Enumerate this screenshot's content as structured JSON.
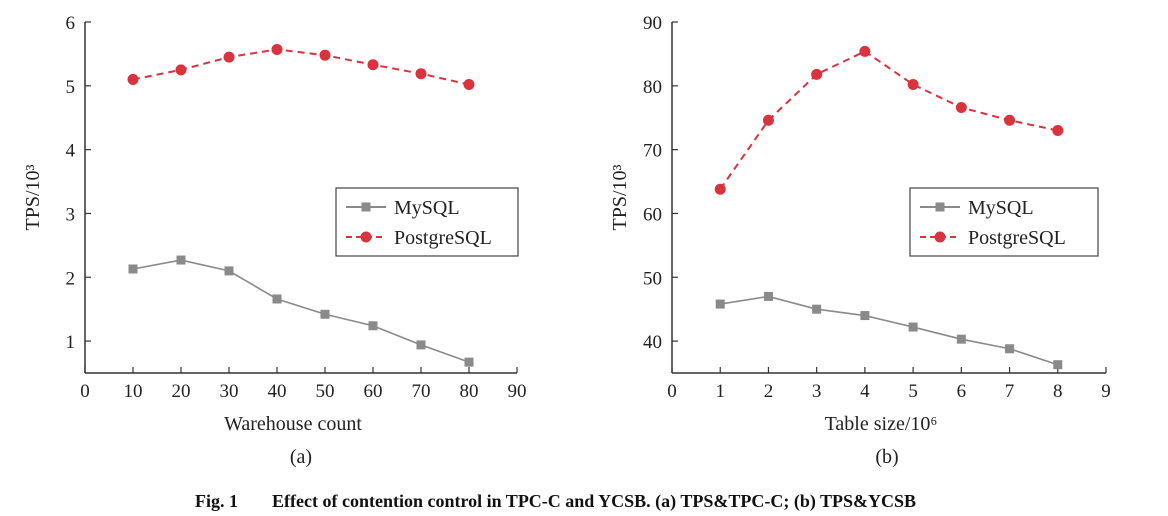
{
  "chart_data": [
    {
      "type": "line",
      "id": "a",
      "subcaption": "(a)",
      "xlabel": "Warehouse count",
      "ylabel": "TPS/10³",
      "xlim": [
        0,
        90
      ],
      "ylim": [
        0.5,
        6
      ],
      "xticks": [
        0,
        10,
        20,
        30,
        40,
        50,
        60,
        70,
        80,
        90
      ],
      "yticks": [
        1,
        2,
        3,
        4,
        5,
        6
      ],
      "x": [
        10,
        20,
        30,
        40,
        50,
        60,
        70,
        80
      ],
      "series": [
        {
          "name": "MySQL",
          "color": "#8a8a8a",
          "marker": "square",
          "dash": "solid",
          "values": [
            2.13,
            2.27,
            2.1,
            1.66,
            1.42,
            1.24,
            0.94,
            0.67
          ]
        },
        {
          "name": "PostgreSQL",
          "color": "#d9333f",
          "marker": "circle",
          "dash": "dashed",
          "values": [
            5.1,
            5.25,
            5.45,
            5.57,
            5.48,
            5.33,
            5.19,
            5.02
          ]
        }
      ],
      "legend": "center-right"
    },
    {
      "type": "line",
      "id": "b",
      "subcaption": "(b)",
      "xlabel": "Table size/10⁶",
      "ylabel": "TPS/10³",
      "xlim": [
        0,
        9
      ],
      "ylim": [
        35,
        90
      ],
      "xticks": [
        0,
        1,
        2,
        3,
        4,
        5,
        6,
        7,
        8,
        9
      ],
      "yticks": [
        40,
        50,
        60,
        70,
        80,
        90
      ],
      "x": [
        1,
        2,
        3,
        4,
        5,
        6,
        7,
        8
      ],
      "series": [
        {
          "name": "MySQL",
          "color": "#8a8a8a",
          "marker": "square",
          "dash": "solid",
          "values": [
            45.8,
            47.0,
            45.0,
            44.0,
            42.2,
            40.3,
            38.8,
            36.3
          ]
        },
        {
          "name": "PostgreSQL",
          "color": "#d9333f",
          "marker": "circle",
          "dash": "dashed",
          "values": [
            63.8,
            74.6,
            81.8,
            85.4,
            80.2,
            76.6,
            74.6,
            73.0
          ]
        }
      ],
      "legend": "center-right"
    }
  ],
  "figure_caption": {
    "label": "Fig. 1",
    "text": "Effect of contention control in TPC-C and YCSB. (a) TPS&TPC-C; (b) TPS&YCSB"
  }
}
